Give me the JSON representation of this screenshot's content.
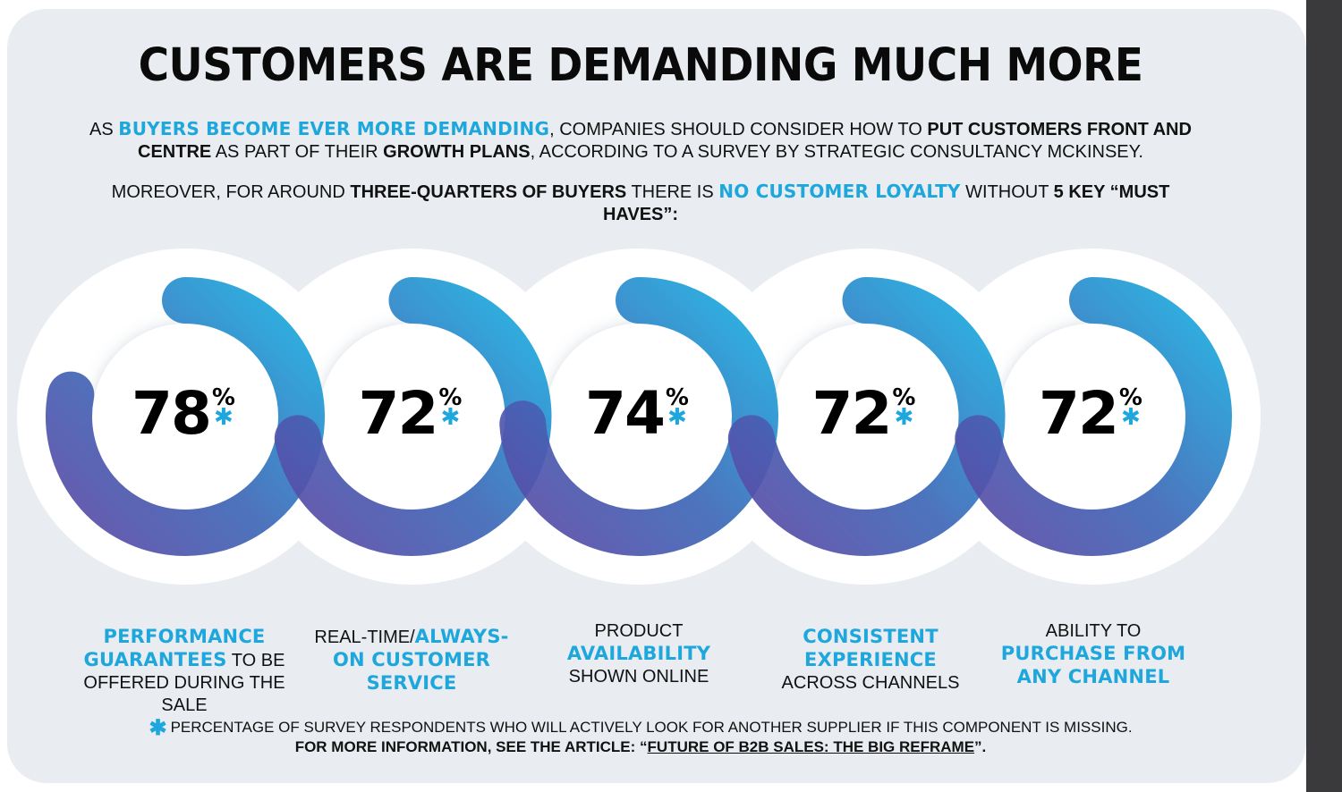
{
  "title": "CUSTOMERS ARE DEMANDING MUCH MORE",
  "intro": {
    "l1a": "AS ",
    "l1b": "BUYERS BECOME EVER MORE DEMANDING",
    "l1c": ", COMPANIES SHOULD CONSIDER HOW TO ",
    "l1d": "PUT CUSTOMERS FRONT AND",
    "l2a": "CENTRE",
    "l2b": " AS PART OF THEIR ",
    "l2c": "GROWTH PLANS",
    "l2d": ", ACCORDING TO A SURVEY BY STRATEGIC CONSULTANCY MCKINSEY.",
    "l3a": "MOREOVER, FOR AROUND ",
    "l3b": "THREE-QUARTERS OF BUYERS",
    "l3c": " THERE IS ",
    "l3d": "NO CUSTOMER LOYALTY",
    "l3e": " WITHOUT ",
    "l3f": "5 KEY “MUST HAVES”:"
  },
  "chart_data": {
    "type": "donut",
    "unit": "%",
    "categories": [
      "PERFORMANCE GUARANTEES TO BE OFFERED DURING THE SALE",
      "REAL-TIME/ALWAYS-ON CUSTOMER SERVICE",
      "PRODUCT AVAILABILITY SHOWN ONLINE",
      "CONSISTENT EXPERIENCE ACROSS CHANNELS",
      "ABILITY TO PURCHASE FROM ANY CHANNEL"
    ],
    "values": [
      78,
      72,
      74,
      72,
      72
    ],
    "value_labels": [
      "78",
      "72",
      "74",
      "72",
      "72"
    ],
    "symbol": "%",
    "marker": "*"
  },
  "labels": [
    {
      "p1": "PERFORMANCE",
      "p2": "GUARANTEES",
      "p3": " TO BE",
      "p4": "OFFERED DURING THE SALE"
    },
    {
      "p1": "REAL-TIME/",
      "p2": "ALWAYS-",
      "p3": "ON CUSTOMER",
      "p4": "SERVICE"
    },
    {
      "p1": "PRODUCT",
      "p2": "AVAILABILITY",
      "p3": "SHOWN ONLINE"
    },
    {
      "p1": "CONSISTENT",
      "p2": "EXPERIENCE",
      "p3": "ACROSS CHANNELS"
    },
    {
      "p1": "ABILITY TO",
      "p2": "PURCHASE FROM",
      "p3": "ANY CHANNEL"
    }
  ],
  "footnote": {
    "star": "✱",
    "line1": "PERCENTAGE OF SURVEY RESPONDENTS WHO WILL ACTIVELY LOOK FOR ANOTHER SUPPLIER IF THIS COMPONENT IS MISSING.",
    "line2a": "FOR MORE INFORMATION, SEE THE ARTICLE: “",
    "line2b": "FUTURE OF B2B SALES: THE BIG REFRAME",
    "line2c": "”."
  },
  "colors": {
    "accent": "#1ea7dd",
    "ring_start": "#5a4ea8",
    "ring_end": "#1fa9dc",
    "panel": "#e9edf1"
  }
}
